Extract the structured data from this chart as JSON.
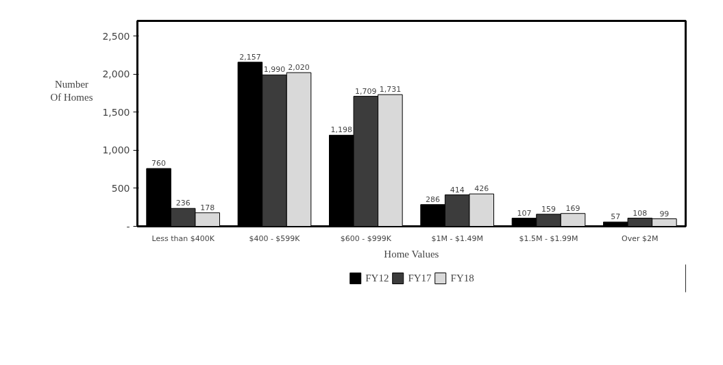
{
  "chart_data": {
    "type": "bar",
    "xlabel": "Home Values",
    "ylabel": "Number\nOf Homes",
    "categories": [
      "Less than $400K",
      "$400 - $599K",
      "$600 - $999K",
      "$1M - $1.49M",
      "$1.5M - $1.99M",
      "Over $2M"
    ],
    "series": [
      {
        "name": "FY12",
        "color": "#000000",
        "values": [
          760,
          2157,
          1198,
          286,
          107,
          57
        ],
        "value_labels": [
          "760",
          "2,157",
          "1,198",
          "286",
          "107",
          "57"
        ]
      },
      {
        "name": "FY17",
        "color": "#3c3c3c",
        "values": [
          236,
          1990,
          1709,
          414,
          159,
          108
        ],
        "value_labels": [
          "236",
          "1,990",
          "1,709",
          "414",
          "159",
          "108"
        ]
      },
      {
        "name": "FY18",
        "color": "#d9d9d9",
        "values": [
          178,
          2020,
          1731,
          426,
          169,
          99
        ],
        "value_labels": [
          "178",
          "2,020",
          "1,731",
          "426",
          "169",
          "99"
        ]
      }
    ],
    "ylim": [
      0,
      2700
    ],
    "yticks": [
      {
        "value": 0,
        "label": "-"
      },
      500,
      {
        "value": 1000,
        "label": "1,000"
      },
      {
        "value": 1500,
        "label": "1,500"
      },
      {
        "value": 2000,
        "label": "2,000"
      },
      {
        "value": 2500,
        "label": "2,500"
      }
    ],
    "grid": false,
    "legend": "bottom"
  }
}
